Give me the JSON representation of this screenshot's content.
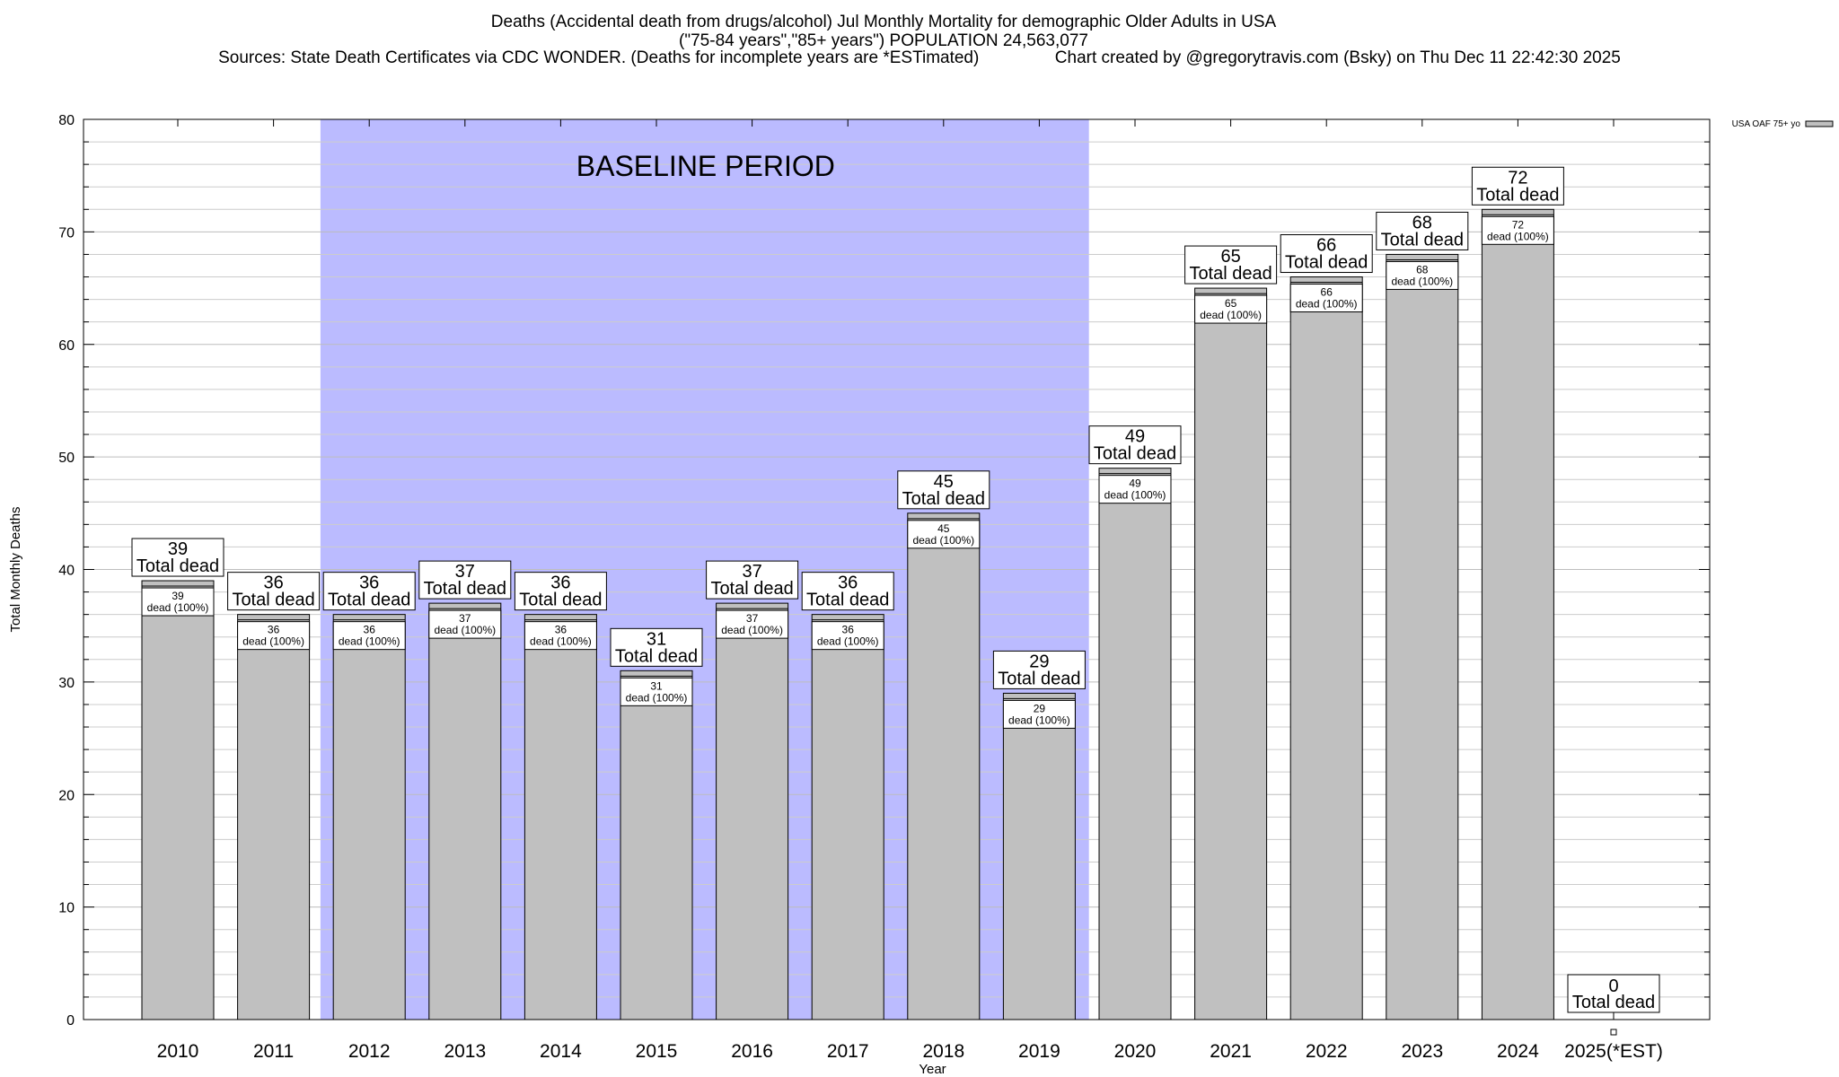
{
  "chart_data": {
    "type": "bar",
    "title_line1": "Deaths (Accidental death from drugs/alcohol) Jul Monthly Mortality for demographic Older Adults in USA",
    "title_line2": "(\"75-84 years\",\"85+ years\") POPULATION 24,563,077",
    "title_line3": "Sources: State Death Certificates via CDC WONDER. (Deaths for incomplete years are *ESTimated)                Chart created by @gregorytravis.com (Bsky) on Thu Dec 11 22:42:30 2025",
    "xlabel": "Year",
    "ylabel": "Total Monthly Deaths",
    "ylim": [
      0,
      80
    ],
    "yticks": [
      0,
      10,
      20,
      30,
      40,
      50,
      60,
      70,
      80
    ],
    "categories": [
      "2010",
      "2011",
      "2012",
      "2013",
      "2014",
      "2015",
      "2016",
      "2017",
      "2018",
      "2019",
      "2020",
      "2021",
      "2022",
      "2023",
      "2024",
      "2025(*EST)"
    ],
    "values": [
      39,
      36,
      36,
      37,
      36,
      31,
      37,
      36,
      45,
      29,
      49,
      65,
      66,
      68,
      72,
      0
    ],
    "series_name": "USA OAF 75+ yo",
    "baseline_label": "BASELINE PERIOD",
    "baseline_range": [
      "2012",
      "2019"
    ],
    "total_label": "Total dead",
    "inner_label_suffix": "dead (100%)",
    "colors": {
      "bar": "#c0c0c0",
      "baseline": "#bbbbff",
      "grid": "#cccccc",
      "axis": "#000000"
    }
  }
}
